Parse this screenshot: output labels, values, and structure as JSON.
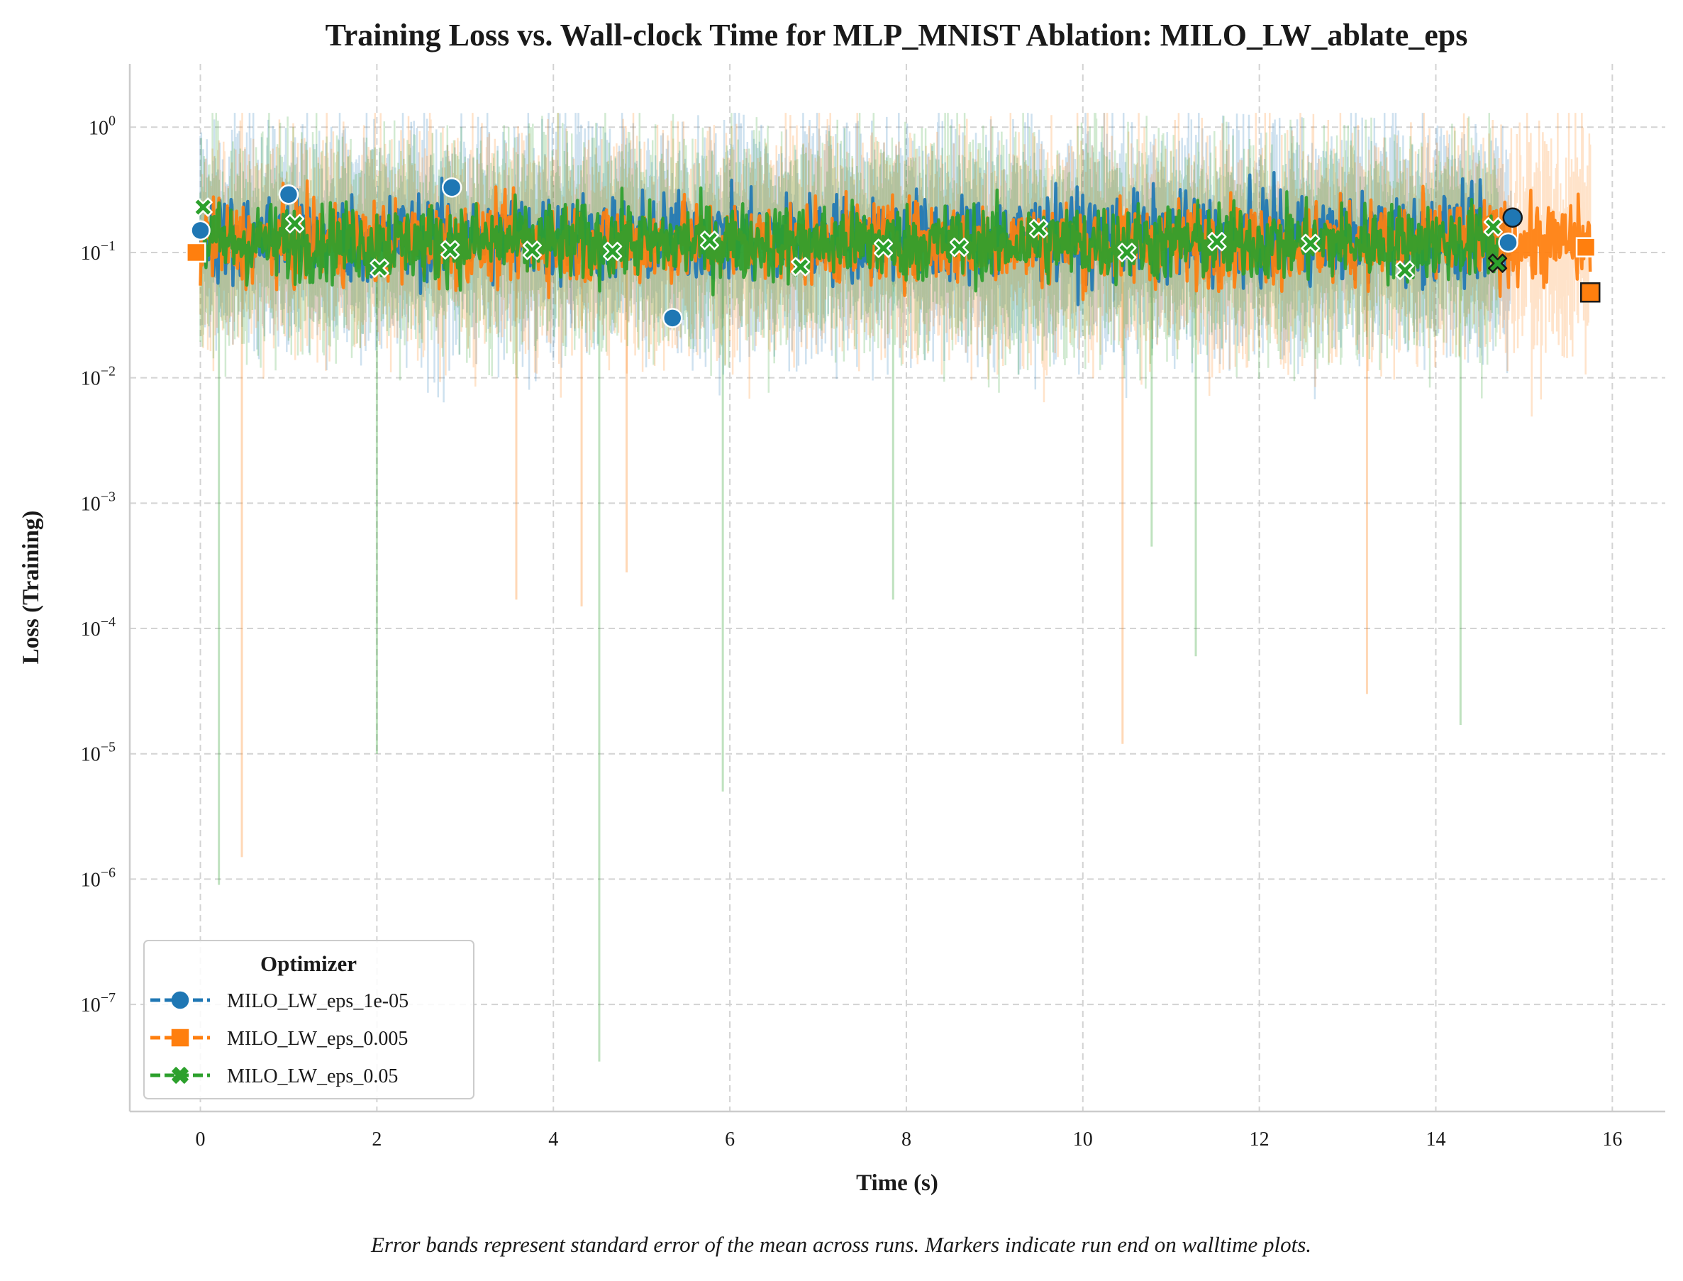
{
  "chart_data": {
    "type": "line",
    "title": "Training Loss vs. Wall-clock Time for MLP_MNIST Ablation: MILO_LW_ablate_eps",
    "xlabel": "Time (s)",
    "ylabel": "Loss (Training)",
    "caption": "Error bands represent standard error of the mean across runs. Markers indicate run end on walltime plots.",
    "xlim": [
      -0.8,
      16.6
    ],
    "ylim": [
      1.4e-08,
      3.2
    ],
    "yscale": "log",
    "xticks": [
      0,
      2,
      4,
      6,
      8,
      10,
      12,
      14,
      16
    ],
    "xtick_labels": [
      "0",
      "2",
      "4",
      "6",
      "8",
      "10",
      "12",
      "14",
      "16"
    ],
    "yticks": [
      1e-07,
      1e-06,
      1e-05,
      0.0001,
      0.001,
      0.01,
      0.1,
      1
    ],
    "ytick_labels": [
      {
        "base": "10",
        "exp": "−7"
      },
      {
        "base": "10",
        "exp": "−6"
      },
      {
        "base": "10",
        "exp": "−5"
      },
      {
        "base": "10",
        "exp": "−4"
      },
      {
        "base": "10",
        "exp": "−3"
      },
      {
        "base": "10",
        "exp": "−2"
      },
      {
        "base": "10",
        "exp": "−1"
      },
      {
        "base": "10",
        "exp": "0"
      }
    ],
    "grid": true,
    "legend": {
      "title": "Optimizer",
      "position": "bottom-left"
    },
    "series": [
      {
        "name": "MILO_LW_eps_1e-05",
        "color": "#1f77b4",
        "marker": "circle",
        "x_end": 14.85,
        "markers": [
          {
            "x": 0.0,
            "y": 0.15
          },
          {
            "x": 1.0,
            "y": 0.29
          },
          {
            "x": 2.85,
            "y": 0.33
          },
          {
            "x": 5.35,
            "y": 0.03
          },
          {
            "x": 14.82,
            "y": 0.12
          },
          {
            "x": 14.87,
            "y": 0.19
          }
        ],
        "band_dips": [
          {
            "x": 10.35,
            "y": 0.016
          },
          {
            "x": 4.2,
            "y": 0.025
          }
        ]
      },
      {
        "name": "MILO_LW_eps_0.005",
        "color": "#ff7f0e",
        "marker": "square",
        "x_end": 15.75,
        "markers": [
          {
            "x": -0.05,
            "y": 0.1
          },
          {
            "x": 15.7,
            "y": 0.11
          },
          {
            "x": 15.75,
            "y": 0.048
          }
        ],
        "band_dips": [
          {
            "x": 0.47,
            "y": 1.5e-06
          },
          {
            "x": 3.58,
            "y": 0.00017
          },
          {
            "x": 4.32,
            "y": 0.00015
          },
          {
            "x": 4.83,
            "y": 0.00028
          },
          {
            "x": 10.45,
            "y": 1.2e-05
          },
          {
            "x": 13.22,
            "y": 3e-05
          }
        ]
      },
      {
        "name": "MILO_LW_eps_0.05",
        "color": "#2ca02c",
        "marker": "x",
        "x_end": 14.7,
        "markers": [
          {
            "x": 0.03,
            "y": 0.23
          },
          {
            "x": 1.07,
            "y": 0.17
          },
          {
            "x": 2.03,
            "y": 0.075
          },
          {
            "x": 2.83,
            "y": 0.105
          },
          {
            "x": 3.76,
            "y": 0.104
          },
          {
            "x": 4.67,
            "y": 0.102
          },
          {
            "x": 5.77,
            "y": 0.125
          },
          {
            "x": 6.8,
            "y": 0.077
          },
          {
            "x": 7.74,
            "y": 0.108
          },
          {
            "x": 8.6,
            "y": 0.11
          },
          {
            "x": 9.5,
            "y": 0.155
          },
          {
            "x": 10.5,
            "y": 0.1
          },
          {
            "x": 11.52,
            "y": 0.122
          },
          {
            "x": 12.58,
            "y": 0.118
          },
          {
            "x": 13.65,
            "y": 0.072
          },
          {
            "x": 14.65,
            "y": 0.16
          },
          {
            "x": 14.7,
            "y": 0.082
          }
        ],
        "band_dips": [
          {
            "x": 0.21,
            "y": 9e-07
          },
          {
            "x": 2.0,
            "y": 1e-05
          },
          {
            "x": 4.52,
            "y": 3.5e-08
          },
          {
            "x": 5.92,
            "y": 5e-06
          },
          {
            "x": 7.85,
            "y": 0.00017
          },
          {
            "x": 10.78,
            "y": 0.00045
          },
          {
            "x": 11.28,
            "y": 6e-05
          },
          {
            "x": 14.28,
            "y": 1.7e-05
          }
        ]
      }
    ]
  }
}
